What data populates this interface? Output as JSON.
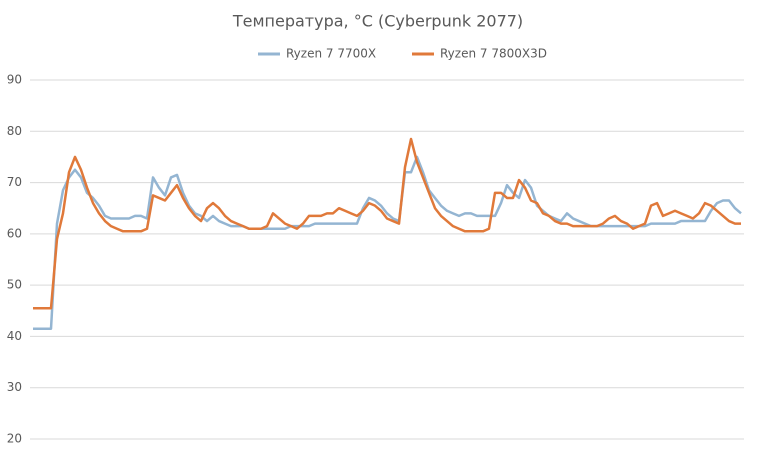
{
  "chart_data": {
    "type": "line",
    "title": "Температура, °C (Cyberpunk 2077)",
    "ylim": [
      20,
      90
    ],
    "yticks": [
      20,
      30,
      40,
      50,
      60,
      70,
      80,
      90
    ],
    "grid": true,
    "legend": "top",
    "series": [
      {
        "name": "Ryzen 7 7700X",
        "color": "#94b5d2",
        "values": [
          41.5,
          41.5,
          41.5,
          41.5,
          62,
          68.5,
          71,
          72.5,
          71,
          68,
          67,
          65.5,
          63.5,
          63,
          63,
          63,
          63,
          63.5,
          63.5,
          63,
          71,
          69,
          67.5,
          71,
          71.5,
          68,
          65.5,
          64,
          63.5,
          62.5,
          63.5,
          62.5,
          62,
          61.5,
          61.5,
          61.5,
          61,
          61,
          61,
          61,
          61,
          61,
          61,
          61.5,
          61.5,
          61.5,
          61.5,
          62,
          62,
          62,
          62,
          62,
          62,
          62,
          62,
          65,
          67,
          66.5,
          65.5,
          64,
          63,
          62.5,
          72,
          72,
          75,
          72,
          68.5,
          67,
          65.5,
          64.5,
          64,
          63.5,
          64,
          64,
          63.5,
          63.5,
          63.5,
          63.5,
          66,
          69.5,
          68,
          67,
          70.5,
          69,
          65.5,
          64.5,
          63.5,
          63,
          62.5,
          64,
          63,
          62.5,
          62,
          61.5,
          61.5,
          61.5,
          61.5,
          61.5,
          61.5,
          61.5,
          61.5,
          61.5,
          61.5,
          62,
          62,
          62,
          62,
          62,
          62.5,
          62.5,
          62.5,
          62.5,
          62.5,
          64.5,
          66,
          66.5,
          66.5,
          65,
          64
        ]
      },
      {
        "name": "Ryzen 7 7800X3D",
        "color": "#e0793a",
        "values": [
          45.5,
          45.5,
          45.5,
          45.5,
          59,
          64,
          72,
          75,
          72.5,
          69,
          66,
          64,
          62.5,
          61.5,
          61,
          60.5,
          60.5,
          60.5,
          60.5,
          61,
          67.5,
          67,
          66.5,
          68,
          69.5,
          67,
          65,
          63.5,
          62.5,
          65,
          66,
          65,
          63.5,
          62.5,
          62,
          61.5,
          61,
          61,
          61,
          61.5,
          64,
          63,
          62,
          61.5,
          61,
          62,
          63.5,
          63.5,
          63.5,
          64,
          64,
          65,
          64.5,
          64,
          63.5,
          64.5,
          66,
          65.5,
          64.5,
          63,
          62.5,
          62,
          73,
          78.5,
          74,
          71,
          68,
          65,
          63.5,
          62.5,
          61.5,
          61,
          60.5,
          60.5,
          60.5,
          60.5,
          61,
          68,
          68,
          67,
          67,
          70.5,
          69,
          66.5,
          66,
          64,
          63.5,
          62.5,
          62,
          62,
          61.5,
          61.5,
          61.5,
          61.5,
          61.5,
          62,
          63,
          63.5,
          62.5,
          62,
          61,
          61.5,
          62,
          65.5,
          66,
          63.5,
          64,
          64.5,
          64,
          63.5,
          63,
          64,
          66,
          65.5,
          64.5,
          63.5,
          62.5,
          62,
          62
        ]
      }
    ]
  }
}
